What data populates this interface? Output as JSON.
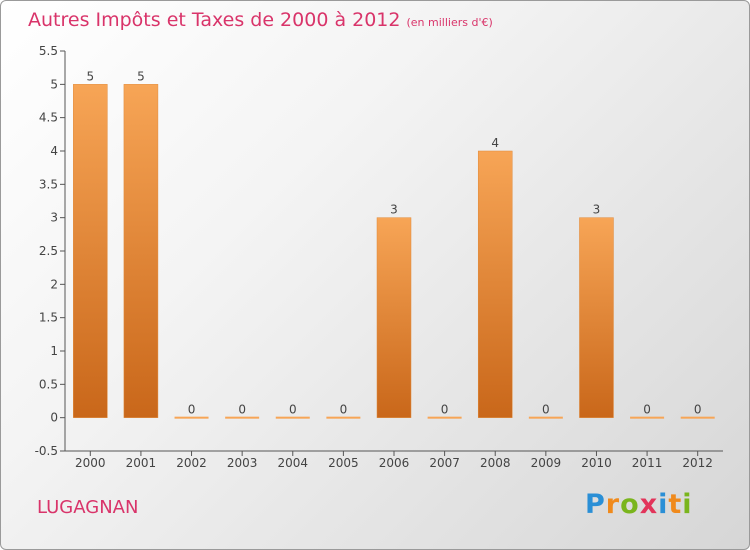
{
  "header": {
    "title": "Autres Impôts et Taxes de 2000 à 2012",
    "unit": "(en milliers d'€)"
  },
  "footer": {
    "commune": "LUGAGNAN",
    "logo_letters": [
      "P",
      "r",
      "o",
      "x",
      "i",
      "t",
      "i"
    ]
  },
  "colors": {
    "bar_top": "#f7a556",
    "bar_bottom": "#c9671a",
    "title": "#d9346a"
  },
  "chart_data": {
    "type": "bar",
    "categories": [
      "2000",
      "2001",
      "2002",
      "2003",
      "2004",
      "2005",
      "2006",
      "2007",
      "2008",
      "2009",
      "2010",
      "2011",
      "2012"
    ],
    "values": [
      5,
      5,
      0,
      0,
      0,
      0,
      3,
      0,
      4,
      0,
      3,
      0,
      0
    ],
    "value_labels": [
      "5",
      "5",
      "0",
      "0",
      "0",
      "0",
      "3",
      "0",
      "4",
      "0",
      "3",
      "0",
      "0"
    ],
    "y_ticks": [
      "-0.5",
      "0",
      "0.5",
      "1",
      "1.5",
      "2",
      "2.5",
      "3",
      "3.5",
      "4",
      "4.5",
      "5",
      "5.5"
    ],
    "ylim": [
      -0.5,
      5.5
    ],
    "grid": false
  }
}
